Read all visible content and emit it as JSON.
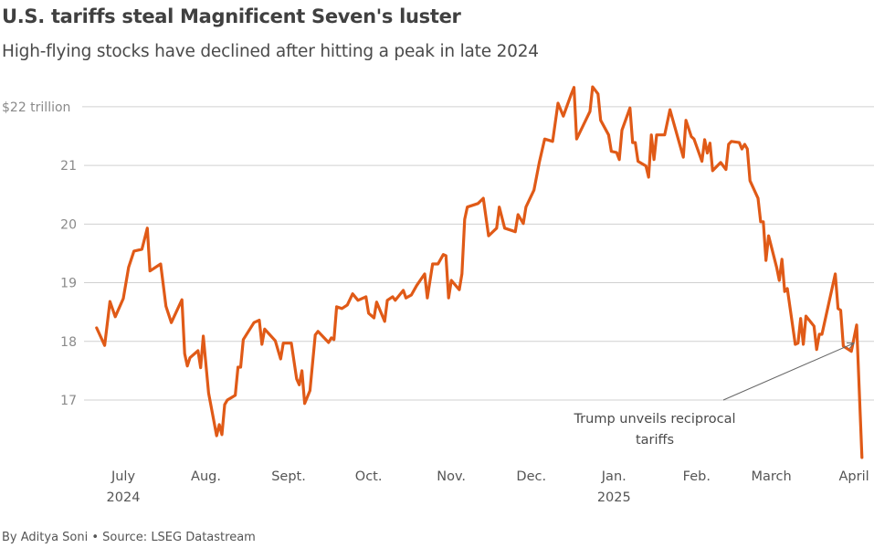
{
  "header": {
    "title": "U.S. tariffs steal Magnificent Seven's luster",
    "subtitle": "High-flying stocks have declined after hitting a peak in late 2024"
  },
  "footer": {
    "credit": "By Aditya Soni • Source: LSEG Datastream"
  },
  "chart_data": {
    "type": "line",
    "title": "U.S. tariffs steal Magnificent Seven's luster",
    "subtitle": "High-flying stocks have declined after hitting a peak in late 2024",
    "ylim": [
      15.9,
      22.45
    ],
    "grid": true,
    "line_color": "#e05a17",
    "y_ticks": [
      {
        "value": 22,
        "label": "$22 trillion"
      },
      {
        "value": 21,
        "label": "21"
      },
      {
        "value": 20,
        "label": "20"
      },
      {
        "value": 19,
        "label": "19"
      },
      {
        "value": 18,
        "label": "18"
      },
      {
        "value": 17,
        "label": "17"
      }
    ],
    "x_ticks": [
      {
        "date": "2024-07-01",
        "label": "July",
        "year": "2024"
      },
      {
        "date": "2024-08-01",
        "label": "Aug."
      },
      {
        "date": "2024-09-01",
        "label": "Sept."
      },
      {
        "date": "2024-10-01",
        "label": "Oct."
      },
      {
        "date": "2024-11-01",
        "label": "Nov."
      },
      {
        "date": "2024-12-01",
        "label": "Dec."
      },
      {
        "date": "2025-01-01",
        "label": "Jan.",
        "year": "2025"
      },
      {
        "date": "2025-02-01",
        "label": "Feb."
      },
      {
        "date": "2025-03-01",
        "label": "March"
      },
      {
        "date": "2025-04-01",
        "label": "April"
      }
    ],
    "annotation": {
      "lines": [
        "Trump unveils reciprocal",
        "tariffs"
      ],
      "date": "2025-04-02",
      "value": 18.0
    },
    "series": [
      {
        "x": [
          "2024-06-21",
          "2024-06-24",
          "2024-06-26",
          "2024-06-28",
          "2024-07-01",
          "2024-07-03",
          "2024-07-05",
          "2024-07-08",
          "2024-07-10",
          "2024-07-11",
          "2024-07-15",
          "2024-07-17",
          "2024-07-19",
          "2024-07-23",
          "2024-07-24",
          "2024-07-25",
          "2024-07-26",
          "2024-07-29",
          "2024-07-30",
          "2024-07-31",
          "2024-08-02",
          "2024-08-05",
          "2024-08-06",
          "2024-08-07",
          "2024-08-08",
          "2024-08-09",
          "2024-08-12",
          "2024-08-13",
          "2024-08-14",
          "2024-08-15",
          "2024-08-19",
          "2024-08-21",
          "2024-08-22",
          "2024-08-23",
          "2024-08-27",
          "2024-08-29",
          "2024-08-30",
          "2024-09-02",
          "2024-09-04",
          "2024-09-05",
          "2024-09-06",
          "2024-09-07",
          "2024-09-09",
          "2024-09-11",
          "2024-09-12",
          "2024-09-16",
          "2024-09-17",
          "2024-09-18",
          "2024-09-19",
          "2024-09-21",
          "2024-09-23",
          "2024-09-25",
          "2024-09-27",
          "2024-09-30",
          "2024-10-01",
          "2024-10-03",
          "2024-10-04",
          "2024-10-07",
          "2024-10-08",
          "2024-10-10",
          "2024-10-11",
          "2024-10-14",
          "2024-10-15",
          "2024-10-17",
          "2024-10-19",
          "2024-10-22",
          "2024-10-23",
          "2024-10-25",
          "2024-10-27",
          "2024-10-29",
          "2024-10-30",
          "2024-10-31",
          "2024-11-01",
          "2024-11-04",
          "2024-11-05",
          "2024-11-06",
          "2024-11-07",
          "2024-11-11",
          "2024-11-13",
          "2024-11-15",
          "2024-11-18",
          "2024-11-19",
          "2024-11-21",
          "2024-11-25",
          "2024-11-26",
          "2024-11-28",
          "2024-11-29",
          "2024-12-02",
          "2024-12-04",
          "2024-12-06",
          "2024-12-09",
          "2024-12-11",
          "2024-12-13",
          "2024-12-16",
          "2024-12-17",
          "2024-12-18",
          "2024-12-23",
          "2024-12-24",
          "2024-12-26",
          "2024-12-27",
          "2024-12-30",
          "2024-12-31",
          "2025-01-02",
          "2025-01-03",
          "2025-01-04",
          "2025-01-07",
          "2025-01-08",
          "2025-01-09",
          "2025-01-10",
          "2025-01-13",
          "2025-01-14",
          "2025-01-15",
          "2025-01-16",
          "2025-01-17",
          "2025-01-20",
          "2025-01-22",
          "2025-01-27",
          "2025-01-28",
          "2025-01-30",
          "2025-01-31",
          "2025-02-03",
          "2025-02-04",
          "2025-02-05",
          "2025-02-06",
          "2025-02-07",
          "2025-02-10",
          "2025-02-12",
          "2025-02-13",
          "2025-02-14",
          "2025-02-17",
          "2025-02-18",
          "2025-02-19",
          "2025-02-20",
          "2025-02-21",
          "2025-02-24",
          "2025-02-25",
          "2025-02-26",
          "2025-02-27",
          "2025-02-28",
          "2025-03-03",
          "2025-03-04",
          "2025-03-05",
          "2025-03-06",
          "2025-03-07",
          "2025-03-10",
          "2025-03-11",
          "2025-03-12",
          "2025-03-13",
          "2025-03-14",
          "2025-03-17",
          "2025-03-18",
          "2025-03-19",
          "2025-03-20",
          "2025-03-25",
          "2025-03-26",
          "2025-03-27",
          "2025-03-28",
          "2025-03-31",
          "2025-04-02",
          "2025-04-04"
        ],
        "values": [
          18.23,
          17.93,
          18.68,
          18.42,
          18.73,
          19.26,
          19.54,
          19.57,
          19.93,
          19.2,
          19.32,
          18.6,
          18.32,
          18.71,
          17.79,
          17.58,
          17.72,
          17.84,
          17.55,
          18.09,
          17.12,
          16.39,
          16.58,
          16.41,
          16.92,
          17.0,
          17.08,
          17.56,
          17.56,
          18.03,
          18.32,
          18.36,
          17.95,
          18.21,
          18.01,
          17.7,
          17.97,
          17.97,
          17.36,
          17.26,
          17.5,
          16.94,
          17.16,
          18.11,
          18.17,
          17.98,
          18.06,
          18.03,
          18.59,
          18.56,
          18.62,
          18.81,
          18.7,
          18.76,
          18.48,
          18.4,
          18.67,
          18.34,
          18.7,
          18.76,
          18.7,
          18.87,
          18.74,
          18.79,
          18.95,
          19.15,
          18.74,
          19.32,
          19.32,
          19.48,
          19.46,
          18.74,
          19.04,
          18.88,
          19.15,
          20.08,
          20.29,
          20.35,
          20.44,
          19.8,
          19.93,
          20.29,
          19.93,
          19.87,
          20.16,
          20.01,
          20.29,
          20.58,
          21.05,
          21.45,
          21.41,
          22.06,
          21.84,
          22.22,
          22.33,
          21.45,
          21.92,
          22.34,
          22.22,
          21.77,
          21.52,
          21.24,
          21.22,
          21.1,
          21.6,
          21.98,
          21.39,
          21.39,
          21.07,
          20.99,
          20.8,
          21.52,
          21.1,
          21.52,
          21.52,
          21.95,
          21.14,
          21.77,
          21.49,
          21.45,
          21.07,
          21.44,
          21.21,
          21.38,
          20.91,
          21.05,
          20.93,
          21.36,
          21.41,
          21.39,
          21.28,
          21.36,
          21.28,
          20.74,
          20.44,
          20.04,
          20.04,
          19.38,
          19.8,
          19.26,
          19.04,
          19.4,
          18.85,
          18.9,
          17.95,
          17.97,
          18.39,
          17.95,
          18.43,
          18.26,
          17.86,
          18.12,
          18.12,
          19.15,
          18.56,
          18.53,
          17.92,
          17.83,
          18.28,
          16.02
        ]
      }
    ]
  }
}
